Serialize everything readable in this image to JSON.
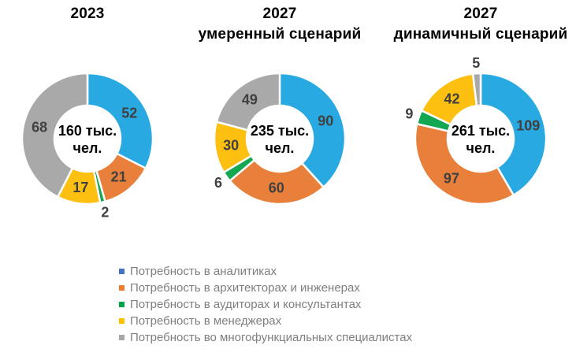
{
  "chart_data": {
    "type": "pie",
    "variant": "donut",
    "unit": "тыс. чел.",
    "categories": [
      "Потребность в аналитиках",
      "Потребность в архитекторах и инженерах",
      "Потребность в аудиторах и консультантах",
      "Потребность в менеджерах",
      "Потребность во многофункциальных специалистах"
    ],
    "series_colors": [
      "#29A9E1",
      "#E8803B",
      "#12A750",
      "#FDC011",
      "#A9A9A9"
    ],
    "geometry": {
      "outer_radius": 83,
      "inner_radius": 42,
      "start_angle_deg": 0,
      "clockwise": true,
      "gap_stroke": "#ffffff",
      "gap_width": 2.5
    },
    "charts": [
      {
        "title": "2023",
        "title_lines": [
          "2023"
        ],
        "center_lines": [
          "160 тыс.",
          "чел."
        ],
        "total_label": "160 тыс. чел.",
        "values": [
          52,
          21,
          2,
          17,
          68
        ],
        "label_placement": [
          "inside",
          "inside",
          "outside",
          "inside",
          "inside"
        ]
      },
      {
        "title": "2027 умеренный сценарий",
        "title_lines": [
          "2027",
          "умеренный сценарий"
        ],
        "center_lines": [
          "235 тыс.",
          "чел."
        ],
        "total_label": "235 тыс. чел.",
        "values": [
          90,
          60,
          6,
          30,
          49
        ],
        "label_placement": [
          "inside",
          "inside",
          "outside",
          "inside",
          "inside"
        ]
      },
      {
        "title": "2027 динамичный сценарий",
        "title_lines": [
          "2027",
          "динамичный сценарий"
        ],
        "center_lines": [
          "261 тыс.",
          "чел."
        ],
        "total_label": "261 тыс. чел.",
        "values": [
          109,
          97,
          9,
          42,
          5
        ],
        "label_placement": [
          "inside",
          "inside",
          "outside",
          "inside",
          "outside"
        ]
      }
    ],
    "legend": {
      "position": "bottom-left",
      "items": [
        {
          "label": "Потребность в аналитиках",
          "color": "#4472C4"
        },
        {
          "label": "Потребность в архитекторах и инженерах",
          "color": "#ED7D31"
        },
        {
          "label": "Потребность в аудиторах и консультантах",
          "color": "#00A14B"
        },
        {
          "label": "Потребность в менеджерах",
          "color": "#FFC000"
        },
        {
          "label": "Потребность во многофункциальных специалистах",
          "color": "#A6A6A6"
        }
      ]
    }
  },
  "styles": {
    "value_label_color": "#404040",
    "legend_text_color": "#7F7F7F",
    "title_color": "#000000",
    "background": "#FFFFFF"
  }
}
